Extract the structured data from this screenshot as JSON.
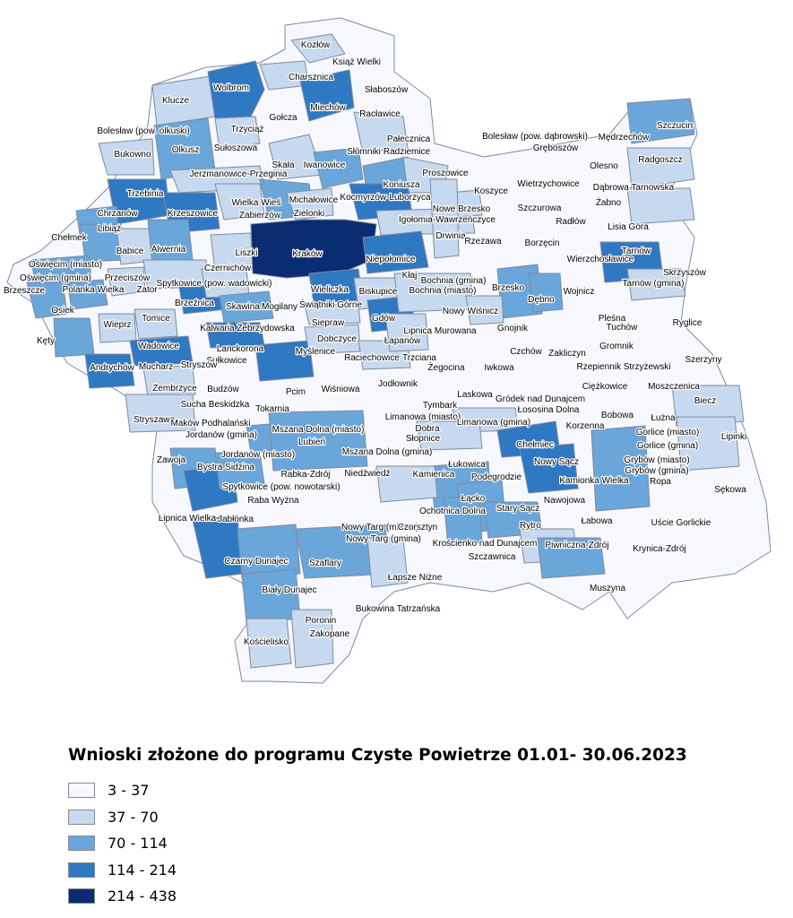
{
  "legend": {
    "title": "Wnioski złożone do programu Czyste Powietrze 01.01- 30.06.2023",
    "classes": [
      {
        "label": "3 - 37",
        "color": "#f6f8fd"
      },
      {
        "label": "37 - 70",
        "color": "#c6d9ee"
      },
      {
        "label": "70 - 114",
        "color": "#6aa6d9"
      },
      {
        "label": "114 - 214",
        "color": "#2f78c2"
      },
      {
        "label": "214 - 438",
        "color": "#0a2c72"
      }
    ]
  },
  "map": {
    "outline_color": "#7f8aa0",
    "labels": [
      "Kozłów",
      "Książ Wielki",
      "Charsznica",
      "Wolbrom",
      "Słaboszów",
      "Klucze",
      "Miechów",
      "Racławice",
      "Gołcza",
      "Trzyciąż",
      "Bolesław (pow. olkuski)",
      "Olkusz",
      "Pałecznica",
      "Radziemice",
      "Bukowno",
      "Sułoszowa",
      "Skała",
      "Iwanowice",
      "Słomniki",
      "Jerzmanowice-Przeginia",
      "Koniusza",
      "Proszowice",
      "Trzebinia",
      "Wielka Wieś",
      "Michałowice",
      "Kocmyrzów-Luborzyca",
      "Chrzanów",
      "Krzeszowice",
      "Zabierzów",
      "Zielonki",
      "Igołomia-Wawrzeńczyce",
      "Nowe Brzesko",
      "Chełmek",
      "Libiąż",
      "Babice",
      "Alwernia",
      "Liszki",
      "Kraków",
      "Drwinia",
      "Oświęcim (miasto)",
      "Oświęcim (gmina)",
      "Czernichów",
      "Niepołomice",
      "Brzeszcze",
      "Przeciszów",
      "Polanka Wielka",
      "Zator",
      "Spytkowice (pow. wadowicki)",
      "Kłaj",
      "Osiek",
      "Brzeźnica",
      "Wieliczka",
      "Skawina",
      "Mogilany",
      "Świątniki Górne",
      "Biskupice",
      "Tomice",
      "Wieprz",
      "Kęty",
      "Kalwaria Zebrzydowska",
      "Siepraw",
      "Gdów",
      "Dobczyce",
      "Wadowice",
      "Lanckorona",
      "Myślenice",
      "Łapanów",
      "Raciechowice",
      "Andrychów",
      "Mucharz",
      "Sułkowice",
      "Stryszów",
      "Zembrzyce",
      "Budzów",
      "Pcim",
      "Wiśniowa",
      "Jodłownik",
      "Sucha Beskidzka",
      "Tokarnia",
      "Stryszawa",
      "Maków Podhalański",
      "Jordanów (gmina)",
      "Mszana Dolna (miasto)",
      "Lubień",
      "Jordanów (miasto)",
      "Mszana Dolna (gmina)",
      "Zawoja",
      "Bystra Sidzina",
      "Rabka-Zdrój",
      "Niedźwiedź",
      "Spytkowice (pow. nowotarski)",
      "Raba Wyżna",
      "Lipnica Wielka",
      "Jabłonka",
      "Nowy Targ (miasto)",
      "Nowy Targ (gmina)",
      "Czarny Dunajec",
      "Szaflary",
      "Łapsze Niżne",
      "Biały Dunajec",
      "Bukowina Tatrzańska",
      "Poronin",
      "Zakopane",
      "Kościelisko",
      "Szczucin",
      "Bolesław (pow. dąbrowski)",
      "Mędrzechów",
      "Gręboszów",
      "Olesno",
      "Radgoszcz",
      "Dąbrowa Tarnowska",
      "Wietrzychowice",
      "Koszyce",
      "Żabno",
      "Szczurowa",
      "Radłów",
      "Lisia Góra",
      "Borzęcin",
      "Rzezawa",
      "Bochnia (gmina)",
      "Bochnia (miasto)",
      "Tarnów",
      "Wierzchosławice",
      "Skrzyszów",
      "Tarnów (gmina)",
      "Brzesko",
      "Wojnicz",
      "Dębno",
      "Nowy Wiśnicz",
      "Gnojnik",
      "Pleśna",
      "Ryglice",
      "Lipnica Murowana",
      "Tuchów",
      "Trzciana",
      "Czchów",
      "Zakliczyn",
      "Gromnik",
      "Żegocina",
      "Iwkowa",
      "Rzepiennik Strzyżewski",
      "Szerzyny",
      "Laskowa",
      "Gródek nad Dunajcem",
      "Łososina Dolna",
      "Ciężkowice",
      "Moszczenica",
      "Biecz",
      "Tymbark",
      "Limanowa (miasto)",
      "Dobra",
      "Limanowa (gmina)",
      "Korzenna",
      "Bobowa",
      "Łużna",
      "Gorlice (miasto)",
      "Gorlice (gmina)",
      "Lipinki",
      "Słopnice",
      "Chełmiec",
      "Nowy Sącz",
      "Grybów (miasto)",
      "Grybów (gmina)",
      "Łukowica",
      "Kamienica",
      "Podegrodzie",
      "Kamionka Wielka",
      "Ropa",
      "Sękowa",
      "Łącko",
      "Stary Sącz",
      "Nawojowa",
      "Ochotnica Dolna",
      "Rytro",
      "Łabowa",
      "Uście Gorlickie",
      "Czorsztyn",
      "Krościenko nad Dunajcem",
      "Piwniczna-Zdrój",
      "Szczawnica",
      "Krynica-Zdrój",
      "Muszyna"
    ]
  }
}
